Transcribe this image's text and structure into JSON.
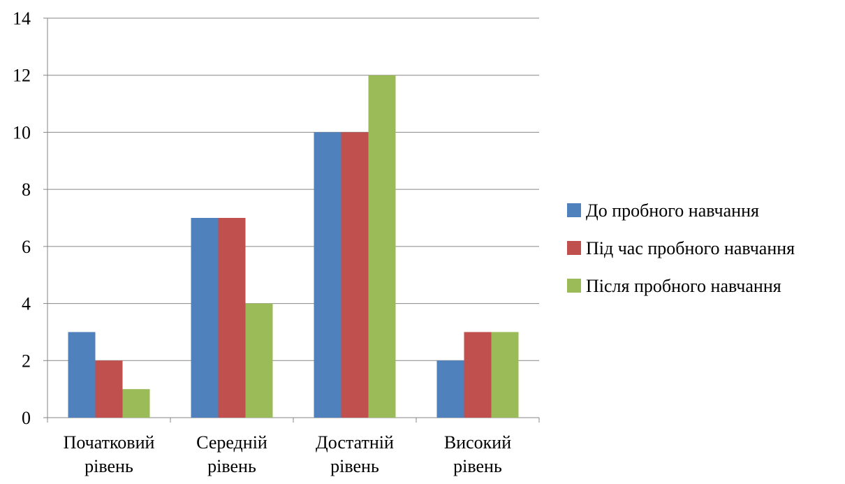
{
  "chart_data": {
    "type": "bar",
    "categories": [
      [
        "Початковий",
        "рівень"
      ],
      [
        "Середній",
        "рівень"
      ],
      [
        "Достатній",
        "рівень"
      ],
      [
        "Високий",
        "рівень"
      ]
    ],
    "series": [
      {
        "name": "До пробного навчання",
        "color": "#4F81BD",
        "values": [
          3,
          7,
          10,
          2
        ]
      },
      {
        "name": "Під час пробного навчання",
        "color": "#C0504D",
        "values": [
          2,
          7,
          10,
          3
        ]
      },
      {
        "name": "Після пробного навчання",
        "color": "#9BBB59",
        "values": [
          1,
          4,
          12,
          3
        ]
      }
    ],
    "y_ticks": [
      "0",
      "2",
      "4",
      "6",
      "8",
      "10",
      "12",
      "14"
    ],
    "ylim": [
      0,
      14
    ],
    "grid": true,
    "legend_position": "right"
  }
}
